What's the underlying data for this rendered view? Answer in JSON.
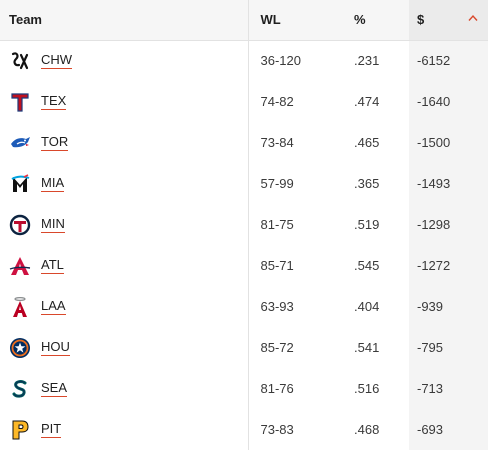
{
  "columns": {
    "team": "Team",
    "wl": "WL",
    "pct": "%",
    "amt": "$"
  },
  "accent": "#d9482b",
  "sort": {
    "column": "amt",
    "direction": "ascending",
    "icon": "chevron-up-icon"
  },
  "rows": [
    {
      "abbr": "CHW",
      "logo": "white-sox-logo-icon",
      "wl": "36-120",
      "pct": ".231",
      "amt": "-6152"
    },
    {
      "abbr": "TEX",
      "logo": "rangers-logo-icon",
      "wl": "74-82",
      "pct": ".474",
      "amt": "-1640"
    },
    {
      "abbr": "TOR",
      "logo": "blue-jays-logo-icon",
      "wl": "73-84",
      "pct": ".465",
      "amt": "-1500"
    },
    {
      "abbr": "MIA",
      "logo": "marlins-logo-icon",
      "wl": "57-99",
      "pct": ".365",
      "amt": "-1493"
    },
    {
      "abbr": "MIN",
      "logo": "twins-logo-icon",
      "wl": "81-75",
      "pct": ".519",
      "amt": "-1298"
    },
    {
      "abbr": "ATL",
      "logo": "braves-logo-icon",
      "wl": "85-71",
      "pct": ".545",
      "amt": "-1272"
    },
    {
      "abbr": "LAA",
      "logo": "angels-logo-icon",
      "wl": "63-93",
      "pct": ".404",
      "amt": "-939"
    },
    {
      "abbr": "HOU",
      "logo": "astros-logo-icon",
      "wl": "85-72",
      "pct": ".541",
      "amt": "-795"
    },
    {
      "abbr": "SEA",
      "logo": "mariners-logo-icon",
      "wl": "81-76",
      "pct": ".516",
      "amt": "-713"
    },
    {
      "abbr": "PIT",
      "logo": "pirates-logo-icon",
      "wl": "73-83",
      "pct": ".468",
      "amt": "-693"
    }
  ]
}
